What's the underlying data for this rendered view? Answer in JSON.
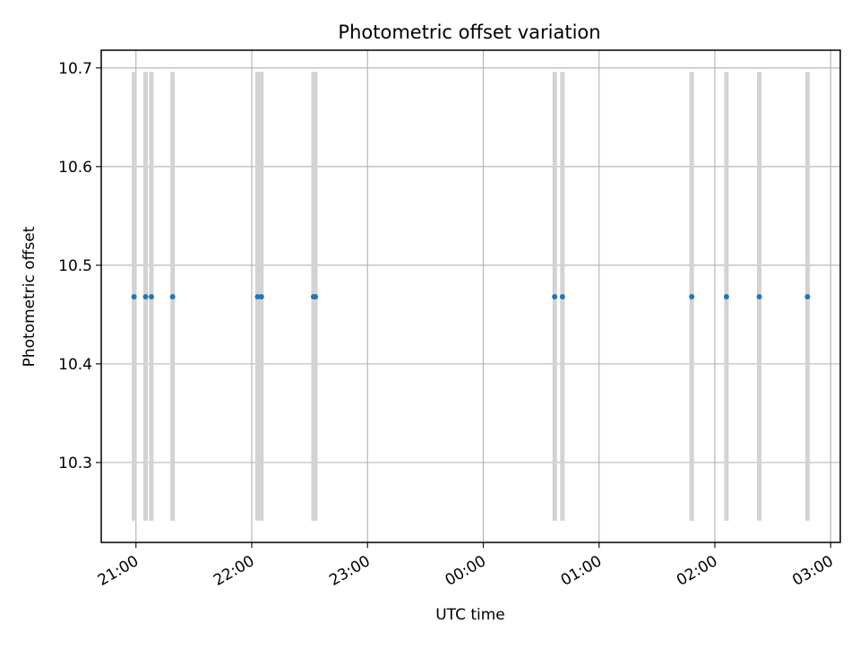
{
  "chart_data": {
    "type": "scatter",
    "title": "Photometric offset variation",
    "xlabel": "UTC time",
    "ylabel": "Photometric offset",
    "x_ticks": [
      "21:00",
      "22:00",
      "23:00",
      "00:00",
      "01:00",
      "02:00",
      "03:00"
    ],
    "y_ticks": [
      "10.3",
      "10.4",
      "10.5",
      "10.6",
      "10.7"
    ],
    "grid": true,
    "xlim": [
      "20:42",
      "03:05"
    ],
    "ylim": [
      10.219,
      10.718
    ],
    "bands": {
      "ymin": 10.241,
      "ymax": 10.696,
      "color": "#d3d3d3",
      "x": [
        "20:59",
        "21:05",
        "21:08",
        "21:19",
        "22:03",
        "22:05",
        "22:32",
        "22:33",
        "00:37",
        "00:41",
        "01:48",
        "02:06",
        "02:23",
        "02:48"
      ]
    },
    "series": [
      {
        "color": "#1f77b4",
        "x": [
          "20:59",
          "21:05",
          "21:08",
          "21:19",
          "22:03",
          "22:05",
          "22:32",
          "22:33",
          "00:37",
          "00:41",
          "01:48",
          "02:06",
          "02:23",
          "02:48"
        ],
        "y": [
          10.468,
          10.468,
          10.468,
          10.468,
          10.468,
          10.468,
          10.468,
          10.468,
          10.468,
          10.468,
          10.468,
          10.468,
          10.468,
          10.468
        ]
      }
    ]
  }
}
